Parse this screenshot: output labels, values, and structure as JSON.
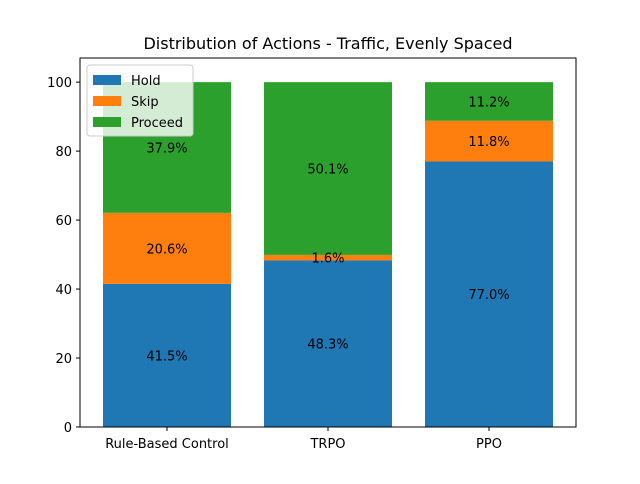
{
  "chart_data": {
    "type": "bar",
    "stacked": true,
    "title": "Distribution of Actions - Traffic, Evenly Spaced",
    "xlabel": "",
    "ylabel": "",
    "categories": [
      "Rule-Based Control",
      "TRPO",
      "PPO"
    ],
    "series": [
      {
        "name": "Hold",
        "color": "#1f77b4",
        "values": [
          41.5,
          48.3,
          77.0
        ]
      },
      {
        "name": "Skip",
        "color": "#ff7f0e",
        "values": [
          20.6,
          1.6,
          11.8
        ]
      },
      {
        "name": "Proceed",
        "color": "#2ca02c",
        "values": [
          37.9,
          50.1,
          11.2
        ]
      }
    ],
    "data_labels": [
      [
        "41.5%",
        "48.3%",
        "77.0%"
      ],
      [
        "20.6%",
        "1.6%",
        "11.8%"
      ],
      [
        "37.9%",
        "50.1%",
        "11.2%"
      ]
    ],
    "ylim": [
      0,
      107
    ],
    "yticks": [
      "0",
      "20",
      "40",
      "60",
      "80",
      "100"
    ],
    "grid": false,
    "legend_position": "top-left"
  }
}
